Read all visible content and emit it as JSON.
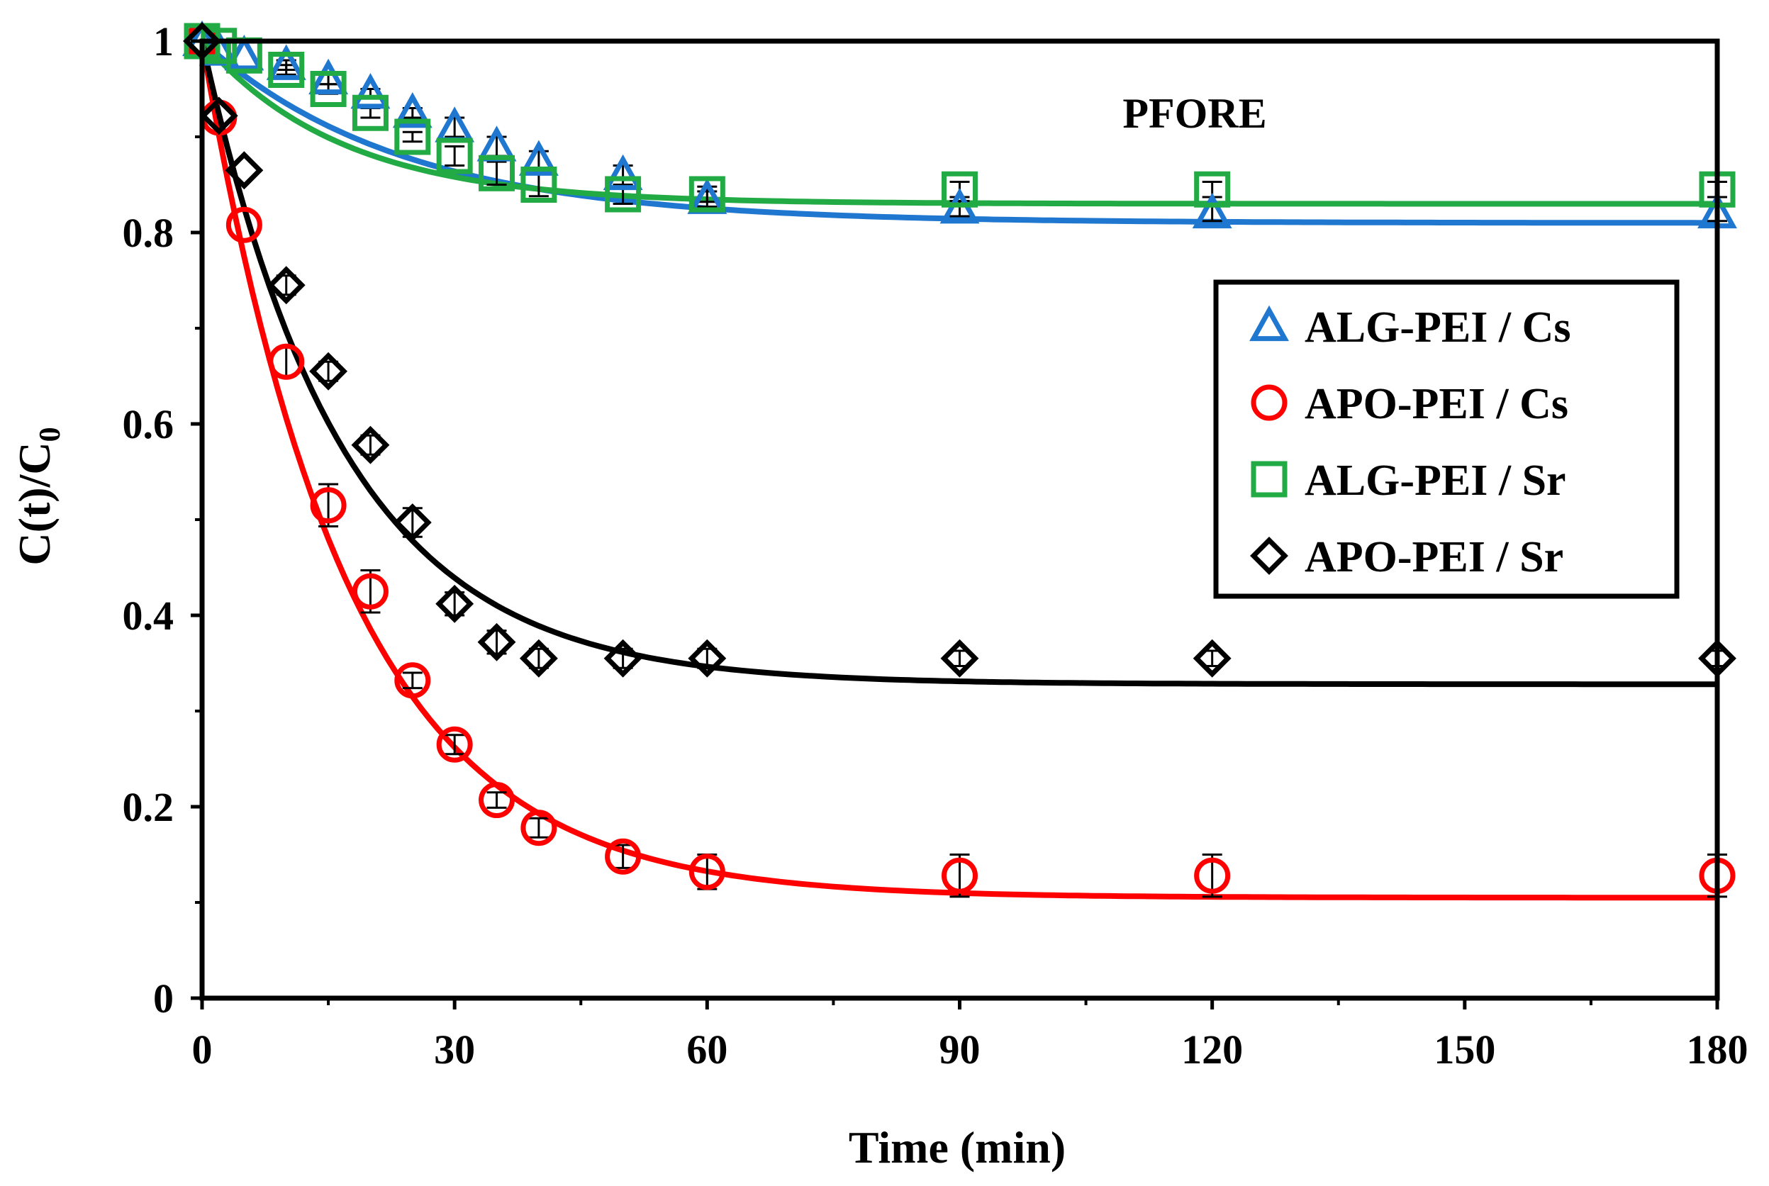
{
  "chart_data": {
    "type": "scatter",
    "title": "",
    "annotation": "PFORE",
    "xlabel": "Time (min)",
    "ylabel": "C(t)/C",
    "ylabel_sub": "0",
    "xlim": [
      0,
      180
    ],
    "ylim": [
      0,
      1
    ],
    "xticks": [
      0,
      30,
      60,
      90,
      120,
      150,
      180
    ],
    "xtick_labels": [
      "0",
      "30",
      "60",
      "90",
      "120",
      "150",
      "180"
    ],
    "yticks": [
      0,
      0.2,
      0.4,
      0.6,
      0.8,
      1
    ],
    "ytick_labels": [
      "0",
      "0.2",
      "0.4",
      "0.6",
      "0.8",
      "1"
    ],
    "grid": false,
    "legend_position": "right-middle",
    "series": [
      {
        "name": "ALG-PEI / Cs",
        "color": "#1F77D0",
        "marker": "triangle",
        "x": [
          0,
          2,
          5,
          10,
          15,
          20,
          25,
          30,
          35,
          40,
          50,
          60,
          90,
          120,
          180
        ],
        "y": [
          1.0,
          0.99,
          0.985,
          0.975,
          0.96,
          0.945,
          0.925,
          0.91,
          0.89,
          0.875,
          0.86,
          0.835,
          0.825,
          0.82,
          0.82
        ],
        "err": [
          0,
          0,
          0,
          0.005,
          0.005,
          0.005,
          0.005,
          0.01,
          0.01,
          0.01,
          0.01,
          0.008,
          0.008,
          0.008,
          0.008
        ],
        "fit": {
          "c_inf": 0.81,
          "k": 0.042
        }
      },
      {
        "name": "APO-PEI / Cs",
        "color": "#FF0000",
        "marker": "circle",
        "x": [
          0,
          2,
          5,
          10,
          15,
          20,
          25,
          30,
          35,
          40,
          50,
          60,
          90,
          120,
          180
        ],
        "y": [
          1.0,
          0.92,
          0.808,
          0.665,
          0.515,
          0.425,
          0.332,
          0.265,
          0.207,
          0.178,
          0.148,
          0.132,
          0.128,
          0.128,
          0.128
        ],
        "err": [
          0,
          0,
          0,
          0.015,
          0.022,
          0.022,
          0.008,
          0.01,
          0.008,
          0.01,
          0.012,
          0.018,
          0.022,
          0.022,
          0.022
        ],
        "fit": {
          "c_inf": 0.105,
          "k": 0.058
        }
      },
      {
        "name": "ALG-PEI / Sr",
        "color": "#22AA44",
        "marker": "square",
        "x": [
          0,
          2,
          5,
          10,
          15,
          20,
          25,
          30,
          35,
          40,
          50,
          60,
          90,
          120,
          180
        ],
        "y": [
          1.0,
          0.995,
          0.985,
          0.97,
          0.95,
          0.925,
          0.9,
          0.88,
          0.862,
          0.85,
          0.84,
          0.84,
          0.845,
          0.845,
          0.845
        ],
        "err": [
          0,
          0,
          0,
          0.005,
          0.005,
          0.005,
          0.005,
          0.01,
          0.012,
          0.012,
          0.01,
          0.008,
          0.008,
          0.008,
          0.008
        ],
        "fit": {
          "c_inf": 0.83,
          "k": 0.06
        }
      },
      {
        "name": "APO-PEI / Sr",
        "color": "#000000",
        "marker": "diamond",
        "x": [
          0,
          2,
          5,
          10,
          15,
          20,
          25,
          30,
          35,
          40,
          50,
          60,
          90,
          120,
          180
        ],
        "y": [
          1.0,
          0.922,
          0.865,
          0.745,
          0.655,
          0.578,
          0.497,
          0.412,
          0.372,
          0.355,
          0.355,
          0.355,
          0.355,
          0.355,
          0.355
        ],
        "err": [
          0,
          0,
          0,
          0.01,
          0.01,
          0.01,
          0.015,
          0.012,
          0.012,
          0.01,
          0.01,
          0.01,
          0.008,
          0.008,
          0.008
        ],
        "fit": {
          "c_inf": 0.328,
          "k": 0.06
        }
      }
    ]
  }
}
